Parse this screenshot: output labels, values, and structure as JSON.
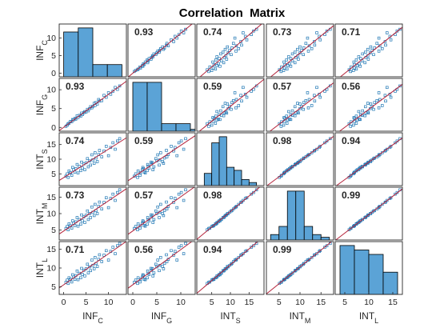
{
  "chart_data": {
    "type": "scatter-matrix",
    "title": "Correlation  Matrix",
    "variables": [
      {
        "base": "INF",
        "sub": "C",
        "ticks": [
          0,
          5,
          10
        ],
        "range": [
          -1,
          14
        ]
      },
      {
        "base": "INF",
        "sub": "G",
        "ticks": [
          0,
          5,
          10
        ],
        "range": [
          -1,
          13
        ]
      },
      {
        "base": "INT",
        "sub": "S",
        "ticks": [
          5,
          10,
          15
        ],
        "range": [
          1,
          19
        ]
      },
      {
        "base": "INT",
        "sub": "M",
        "ticks": [
          5,
          10,
          15
        ],
        "range": [
          2,
          18
        ]
      },
      {
        "base": "INT",
        "sub": "L",
        "ticks": [
          5,
          10,
          15
        ],
        "range": [
          3,
          17
        ]
      }
    ],
    "correlations": [
      [
        "",
        "0.93",
        "0.74",
        "0.73",
        "0.71"
      ],
      [
        "0.93",
        "",
        "0.59",
        "0.57",
        "0.56"
      ],
      [
        "0.74",
        "0.59",
        "",
        "0.98",
        "0.94"
      ],
      [
        "0.73",
        "0.57",
        "0.98",
        "",
        "0.99"
      ],
      [
        "0.71",
        "0.56",
        "0.94",
        "0.99",
        ""
      ]
    ],
    "histograms": [
      {
        "bins": [
          0,
          3.25,
          6.5,
          9.75,
          13
        ],
        "counts": [
          11,
          12,
          3,
          3
        ]
      },
      {
        "bins": [
          0,
          3,
          6,
          9,
          12
        ],
        "counts": [
          13,
          13,
          2,
          2,
          0.5
        ]
      },
      {
        "bins": [
          3,
          5,
          7,
          9,
          11,
          13,
          15,
          17
        ],
        "counts": [
          4,
          14,
          16,
          6,
          5,
          2,
          1
        ]
      },
      {
        "bins": [
          3,
          5,
          7,
          9,
          11,
          13,
          15,
          17
        ],
        "counts": [
          2,
          5,
          18,
          18,
          5,
          2,
          1
        ]
      },
      {
        "bins": [
          4,
          7,
          10,
          13,
          16
        ],
        "counts": [
          11,
          10,
          9,
          5
        ]
      }
    ],
    "series": [
      {
        "name": "INF_C",
        "values": [
          0.5,
          0.8,
          1.0,
          1.2,
          1.5,
          1.8,
          2.0,
          2.2,
          2.5,
          2.7,
          3.0,
          3.2,
          3.5,
          3.8,
          4.0,
          4.2,
          4.5,
          4.7,
          5.0,
          5.3,
          5.5,
          5.8,
          6.0,
          6.3,
          6.5,
          6.8,
          7.0,
          7.2,
          7.5,
          7.8,
          8.0,
          8.5,
          9.0,
          9.5,
          10.0,
          10.5,
          11.0,
          11.5,
          12.0,
          12.5
        ]
      },
      {
        "name": "INF_G",
        "values": [
          0.3,
          0.6,
          1.0,
          1.1,
          1.6,
          1.5,
          2.1,
          2.0,
          2.4,
          2.2,
          3.1,
          2.6,
          3.2,
          3.0,
          3.8,
          3.4,
          3.9,
          4.2,
          4.1,
          4.8,
          4.4,
          5.0,
          5.5,
          5.2,
          5.6,
          6.4,
          5.8,
          6.6,
          6.2,
          7.4,
          7.0,
          7.1,
          8.5,
          8.0,
          9.2,
          8.8,
          9.6,
          10.6,
          10.1,
          11.0
        ]
      },
      {
        "name": "INT_S",
        "values": [
          4.2,
          5.0,
          3.8,
          6.0,
          5.4,
          4.5,
          7.2,
          6.4,
          5.6,
          6.8,
          8.2,
          5.3,
          7.6,
          6.1,
          9.0,
          7.0,
          8.4,
          6.4,
          8.8,
          10.2,
          7.4,
          9.4,
          8.0,
          11.5,
          9.8,
          8.6,
          12.2,
          10.4,
          9.2,
          11.6,
          13.0,
          10.8,
          12.8,
          14.4,
          11.2,
          14.0,
          15.6,
          13.4,
          16.2,
          17.0
        ]
      },
      {
        "name": "INT_M",
        "values": [
          5.5,
          6.1,
          5.1,
          6.9,
          6.3,
          5.6,
          7.8,
          7.1,
          6.4,
          7.5,
          8.8,
          6.2,
          8.2,
          6.8,
          9.6,
          7.8,
          9.0,
          7.3,
          9.5,
          10.8,
          8.2,
          10.0,
          8.8,
          12.0,
          10.4,
          9.4,
          12.8,
          10.9,
          10.0,
          12.2,
          13.5,
          11.4,
          13.4,
          14.8,
          11.8,
          14.6,
          15.9,
          14.0,
          16.4,
          17.2
        ]
      },
      {
        "name": "INT_L",
        "values": [
          6.2,
          6.8,
          5.9,
          7.4,
          7.0,
          6.3,
          8.2,
          7.6,
          7.0,
          8.0,
          9.2,
          6.9,
          8.6,
          7.4,
          9.9,
          8.3,
          9.4,
          7.9,
          9.8,
          11.0,
          8.7,
          10.3,
          9.3,
          12.1,
          10.7,
          9.8,
          12.8,
          11.2,
          10.4,
          12.3,
          13.5,
          11.7,
          13.4,
          14.6,
          12.1,
          14.4,
          15.5,
          13.8,
          15.9,
          16.5
        ]
      }
    ],
    "fit_color": "#b5223a",
    "marker_color": "#1f77b4",
    "bar_color": "#5ba3d6"
  }
}
